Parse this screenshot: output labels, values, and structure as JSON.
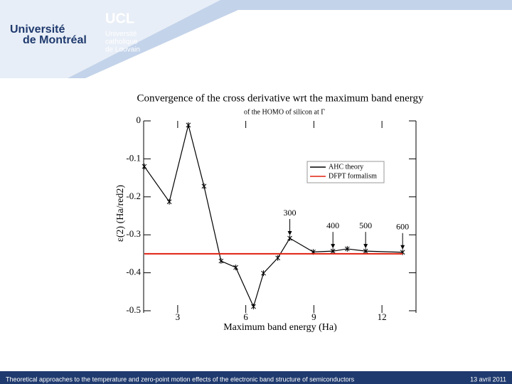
{
  "header": {
    "logo_left_line1": "Université",
    "logo_left_line2": "de Montréal",
    "logo_right_title": "UCL",
    "logo_right_line1": "Université",
    "logo_right_line2": "catholique",
    "logo_right_line3": "de Louvain"
  },
  "chart_data": {
    "type": "line",
    "title": "Convergence of the cross derivative wrt the maximum band energy",
    "subtitle": "of the HOMO of silicon at Γ",
    "xlabel": "Maximum band energy (Ha)",
    "ylabel": "ε(2) (Ha/red2)",
    "xlim": [
      1.5,
      13.5
    ],
    "ylim": [
      -0.5,
      0
    ],
    "xticks": [
      3,
      6,
      9,
      12
    ],
    "yticks": [
      0,
      -0.1,
      -0.2,
      -0.3,
      -0.4,
      -0.5
    ],
    "legend": "upper right",
    "series": [
      {
        "name": "AHC theory",
        "color": "#000000",
        "marker": "x",
        "x": [
          1.53,
          2.63,
          3.47,
          4.16,
          4.91,
          5.56,
          6.34,
          6.78,
          7.41,
          7.94,
          8.97,
          9.84,
          10.47,
          11.28,
          12.91
        ],
        "values": [
          -0.12,
          -0.213,
          -0.011,
          -0.172,
          -0.369,
          -0.386,
          -0.489,
          -0.401,
          -0.361,
          -0.309,
          -0.345,
          -0.343,
          -0.337,
          -0.343,
          -0.346
        ]
      },
      {
        "name": "DFPT formalism",
        "color": "#e02010",
        "x": [
          1.53,
          12.91
        ],
        "values": [
          -0.35,
          -0.35
        ]
      }
    ],
    "annotations": [
      {
        "text": "300",
        "x": 7.94,
        "y": -0.309
      },
      {
        "text": "400",
        "x": 9.84,
        "y": -0.343
      },
      {
        "text": "500",
        "x": 11.28,
        "y": -0.343
      },
      {
        "text": "600",
        "x": 12.91,
        "y": -0.346
      }
    ]
  },
  "footer": {
    "text": "Theoretical approaches to the temperature and zero-point motion effects of the electronic band structure of semiconductors",
    "date": "13 avril 2011"
  }
}
